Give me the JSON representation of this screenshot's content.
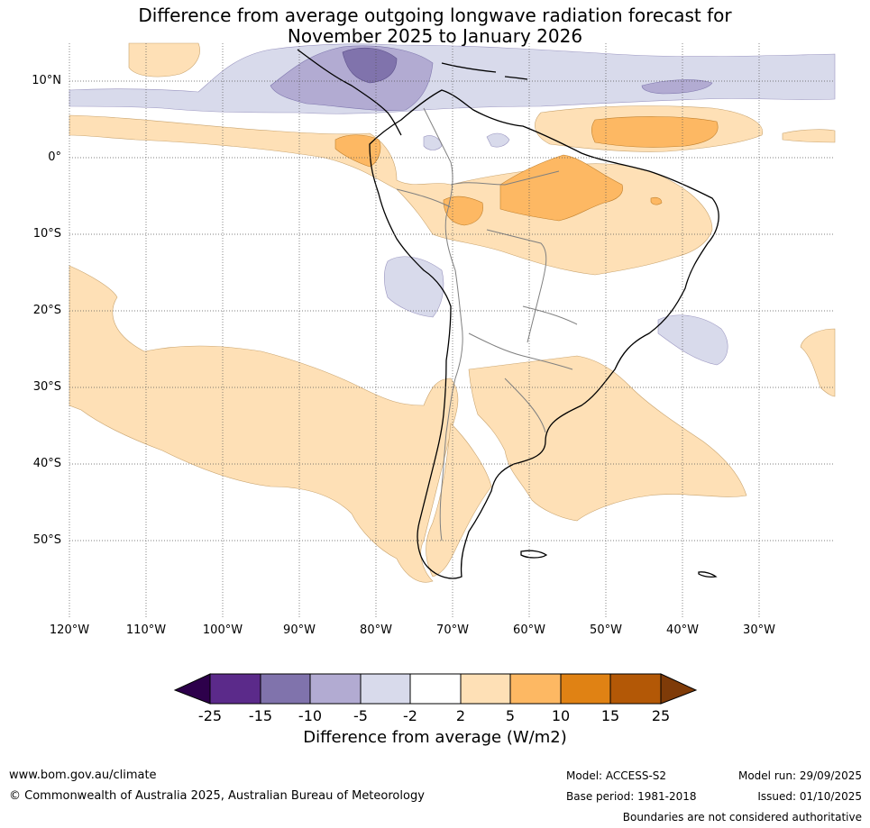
{
  "title": {
    "line1": "Difference from average outgoing longwave radiation forecast for",
    "line2": "November 2025 to January 2026"
  },
  "map": {
    "lat_labels": [
      "10°N",
      "0°",
      "10°S",
      "20°S",
      "30°S",
      "40°S",
      "50°S"
    ],
    "lon_labels": [
      "120°W",
      "110°W",
      "100°W",
      "90°W",
      "80°W",
      "70°W",
      "60°W",
      "50°W",
      "40°W",
      "30°W"
    ]
  },
  "colorbar": {
    "ticks": [
      "-25",
      "-15",
      "-10",
      "-5",
      "-2",
      "2",
      "5",
      "10",
      "15",
      "25"
    ],
    "colors": [
      "#2d004b",
      "#5b2a8a",
      "#8073ac",
      "#b2abd2",
      "#d8daeb",
      "#ffffff",
      "#fee0b6",
      "#fdb863",
      "#e08214",
      "#b35806",
      "#7f3b08"
    ],
    "label": "Difference from average (W/m2)"
  },
  "footer": {
    "website": "www.bom.gov.au/climate",
    "copyright": "© Commonwealth of Australia 2025, Australian Bureau of Meteorology",
    "model": "Model: ACCESS-S2",
    "base_period": "Base period: 1981-2018",
    "model_run": "Model run: 29/09/2025",
    "issued": "Issued: 01/10/2025",
    "disclaimer": "Boundaries are not considered authoritative"
  }
}
